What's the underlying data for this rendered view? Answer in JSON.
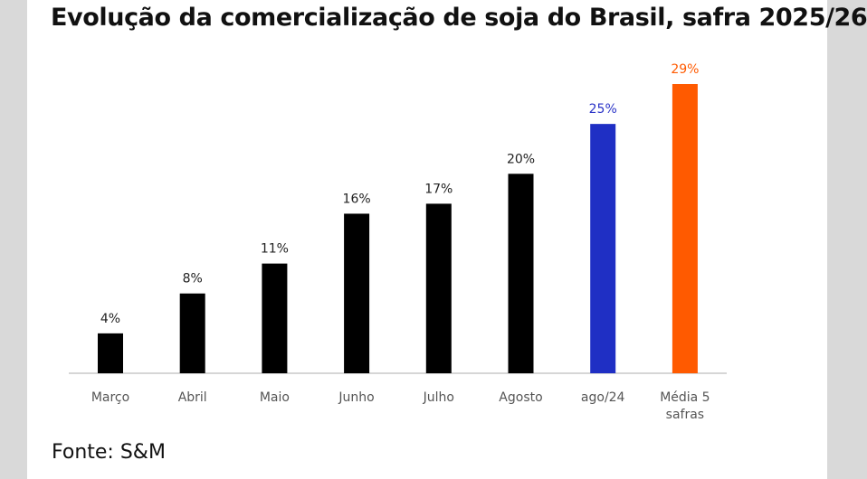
{
  "title": "Evolução da comercialização de soja do Brasil, safra 2025/26",
  "source": "Fonte: S&M",
  "chart_data": {
    "type": "bar",
    "title": "Evolução da comercialização de soja do Brasil, safra 2025/26",
    "xlabel": "",
    "ylabel": "",
    "categories": [
      "Março",
      "Abril",
      "Maio",
      "Junho",
      "Julho",
      "Agosto",
      "ago/24",
      "Média 5 safras"
    ],
    "category_lines": [
      [
        "Março"
      ],
      [
        "Abril"
      ],
      [
        "Maio"
      ],
      [
        "Junho"
      ],
      [
        "Julho"
      ],
      [
        "Agosto"
      ],
      [
        "ago/24"
      ],
      [
        "Média 5",
        "safras"
      ]
    ],
    "values": [
      4,
      8,
      11,
      16,
      17,
      20,
      25,
      29
    ],
    "value_labels": [
      "4%",
      "8%",
      "11%",
      "16%",
      "17%",
      "20%",
      "25%",
      "29%"
    ],
    "bar_colors": [
      "#000000",
      "#000000",
      "#000000",
      "#000000",
      "#000000",
      "#000000",
      "#1f2fc4",
      "#ff5a00"
    ],
    "label_colors": [
      "#222222",
      "#222222",
      "#222222",
      "#222222",
      "#222222",
      "#222222",
      "#2a33c7",
      "#ff5a00"
    ],
    "ylim": [
      0,
      29
    ],
    "grid": false,
    "legend": "none"
  }
}
